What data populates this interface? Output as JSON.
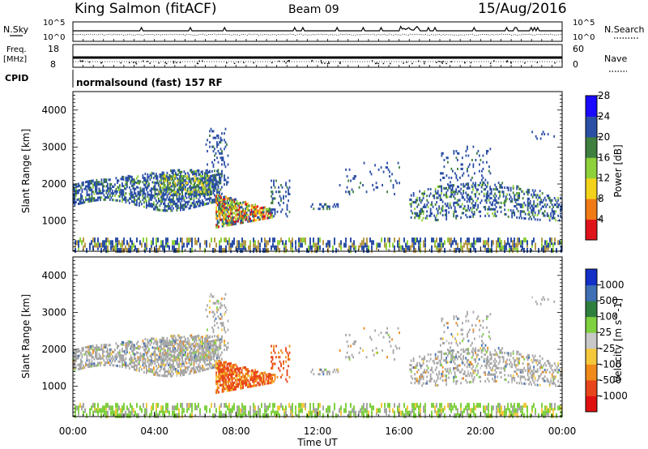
{
  "header": {
    "station": "King Salmon (fitACF)",
    "beam": "Beam 09",
    "date": "15/Aug/2016"
  },
  "top_strip": {
    "left_label": "N.Sky",
    "right_label": "N.Search",
    "left_ticks": [
      "10^5",
      "10^0"
    ],
    "right_ticks": [
      "10^5",
      "10^0"
    ],
    "freq_label": "Freq.",
    "freq_unit": "[MHz]",
    "freq_ticks": [
      "18",
      "8"
    ],
    "nave_label": "Nave",
    "nave_ticks": [
      "60",
      "0"
    ],
    "cpid_label": "CPID",
    "cpid_text": "normalsound (fast) 157 RF"
  },
  "axis": {
    "xlabel": "Time UT",
    "ylabel": "Slant Range [km]",
    "xticks": [
      "00:00",
      "04:00",
      "08:00",
      "12:00",
      "16:00",
      "20:00",
      "00:00"
    ],
    "yticks": [
      "1000",
      "2000",
      "3000",
      "4000"
    ]
  },
  "chart_data": [
    {
      "type": "heatmap",
      "panel": "power",
      "xlabel": "Time UT",
      "ylabel": "Slant Range [km]",
      "x_range_hours": [
        0,
        24
      ],
      "y_range_km": [
        180,
        4500
      ],
      "colorbar_label": "Power [dB]",
      "colorbar_ticks": [
        "4",
        "8",
        "12",
        "16",
        "20",
        "24",
        "28"
      ],
      "colorbar_colors": [
        "#1a0aff",
        "#2b4fa6",
        "#3f7f3f",
        "#8fd13a",
        "#f2d21a",
        "#f07a14",
        "#e0131b"
      ]
    },
    {
      "type": "heatmap",
      "panel": "velocity",
      "xlabel": "Time UT",
      "ylabel": "Slant Range [km]",
      "x_range_hours": [
        0,
        24
      ],
      "y_range_km": [
        180,
        4500
      ],
      "colorbar_label": "Velocity [m s^-1]",
      "colorbar_ticks": [
        "1000",
        "500",
        "100",
        "25",
        "-25",
        "-100",
        "-500",
        "-1000"
      ],
      "colorbar_colors": [
        "#1330c8",
        "#3f6fb4",
        "#2f7f3f",
        "#7fd13f",
        "#c8c8c8",
        "#f5c83c",
        "#f08a1a",
        "#e8451a",
        "#e01010"
      ]
    }
  ],
  "colors": {
    "frame": "#000000",
    "ground_scatter": "#a6a6a6"
  }
}
